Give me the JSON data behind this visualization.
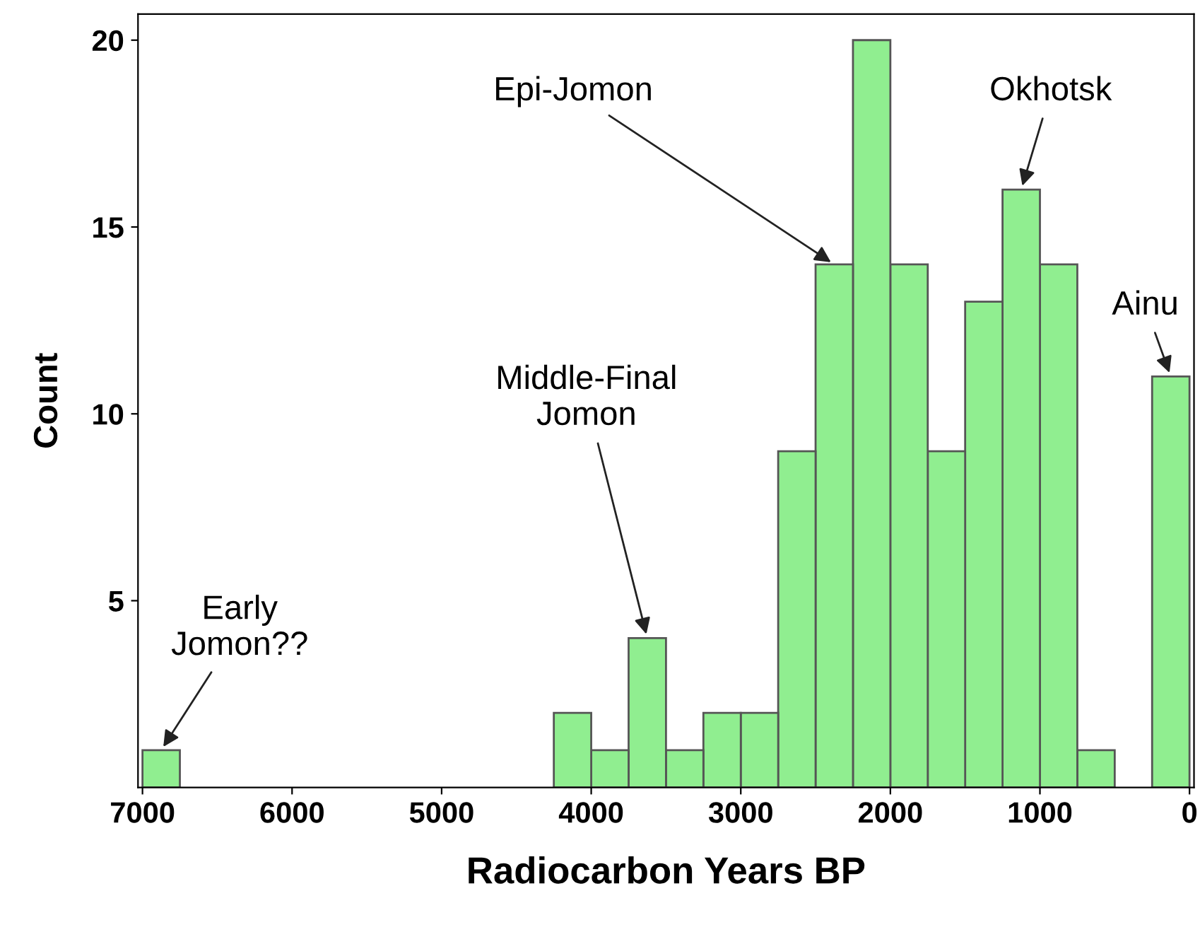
{
  "chart_data": {
    "type": "histogram",
    "xlabel": "Radiocarbon Years BP",
    "ylabel": "Count",
    "color": "#90ee90",
    "bins": [
      0,
      250,
      500,
      750,
      1000,
      1250,
      1500,
      1750,
      2000,
      2250,
      2500,
      2750,
      3000,
      3250,
      3500,
      3750,
      4000,
      4250,
      4500,
      4750,
      5000,
      5250,
      5500,
      5750,
      6000,
      6250,
      6500,
      6750,
      7000
    ],
    "values": [
      11,
      0,
      1,
      14,
      16,
      13,
      9,
      14,
      20,
      14,
      9,
      2,
      2,
      1,
      4,
      1,
      2,
      0,
      0,
      0,
      0,
      0,
      0,
      0,
      0,
      0,
      0,
      1
    ],
    "xlim": [
      7030,
      -30
    ],
    "ylim": [
      0,
      20.7
    ],
    "xticks": [
      7000,
      6000,
      5000,
      4000,
      3000,
      2000,
      1000,
      0
    ],
    "yticks": [
      5,
      10,
      15,
      20
    ],
    "grid": false,
    "annotations": [
      {
        "text": "Early\nJomon??",
        "x": 6875,
        "y": 1
      },
      {
        "text": "Middle-Final\nJomon",
        "x": 3625,
        "y": 4
      },
      {
        "text": "Epi-Jomon",
        "x": 2375,
        "y": 14
      },
      {
        "text": "Okhotsk",
        "x": 1125,
        "y": 16
      },
      {
        "text": "Ainu",
        "x": 125,
        "y": 11
      }
    ]
  }
}
